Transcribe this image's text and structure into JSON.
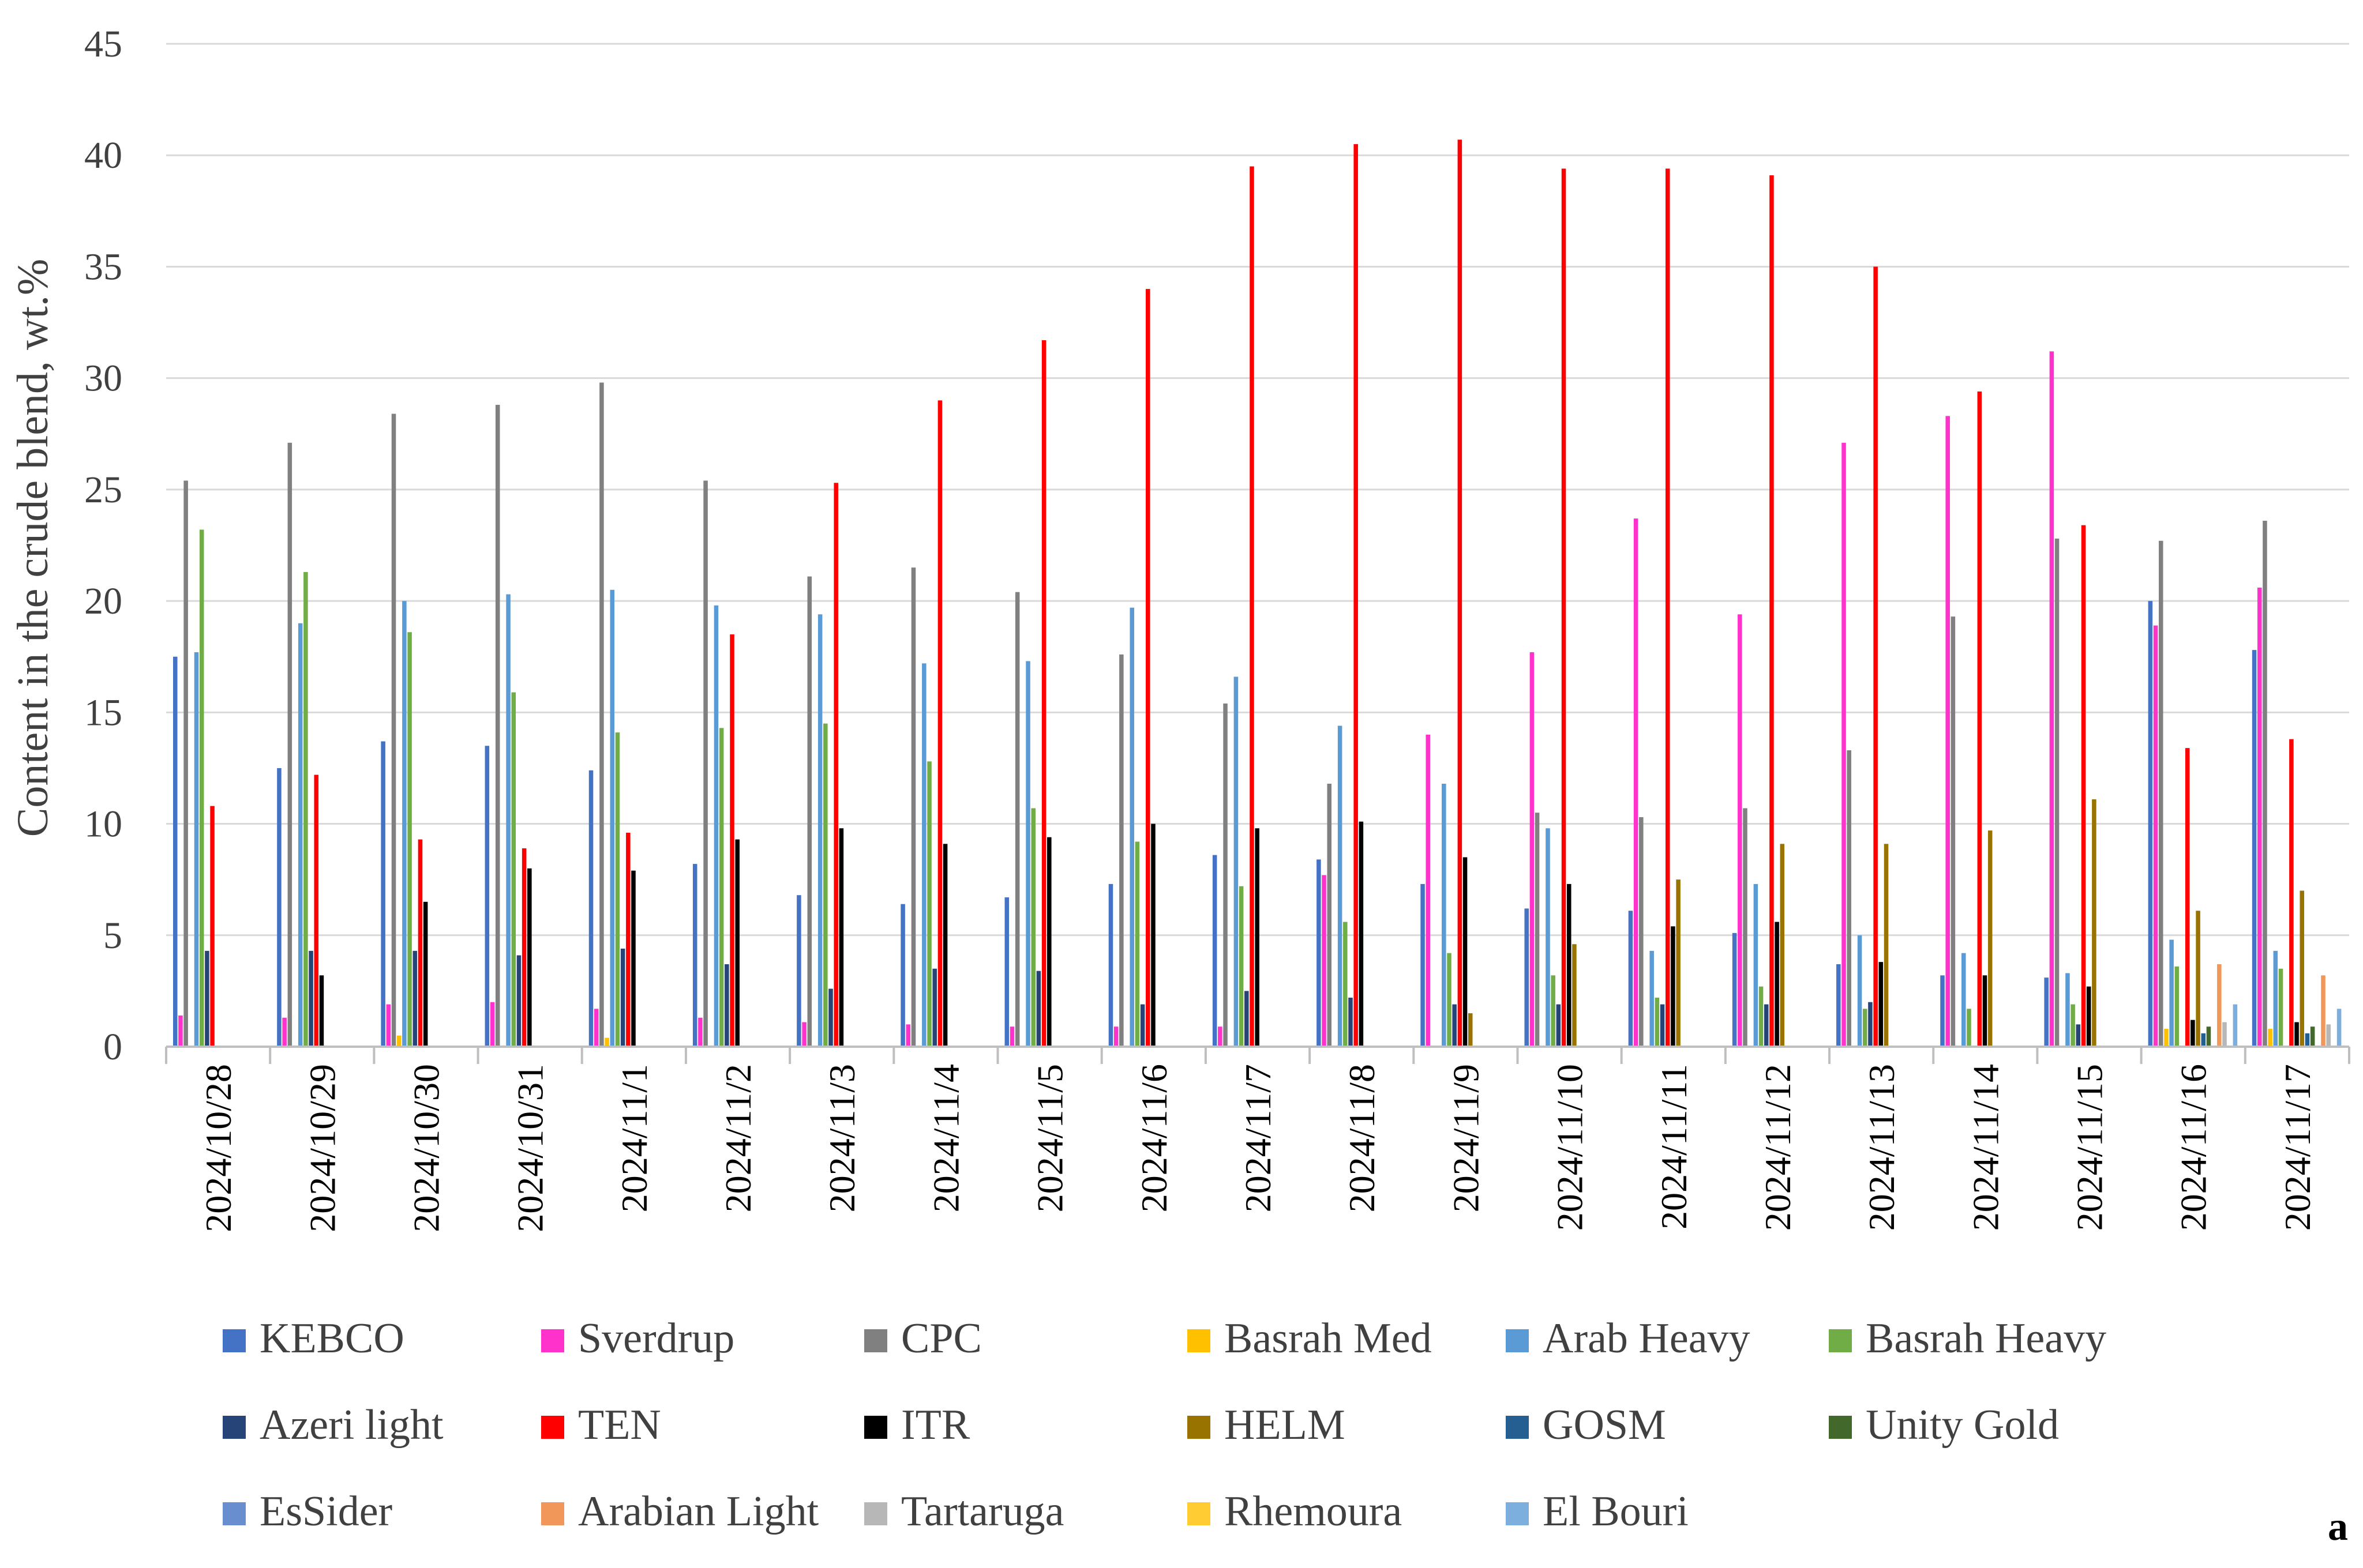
{
  "chart_data": {
    "type": "bar",
    "title": "",
    "xlabel": "",
    "ylabel": "Content in the crude blend, wt.%",
    "ylim": [
      0,
      45
    ],
    "yticks": [
      "0",
      "5",
      "10",
      "15",
      "20",
      "25",
      "30",
      "35",
      "40",
      "45"
    ],
    "grid": true,
    "legend_position": "bottom",
    "panel_label": "a",
    "categories": [
      "2024/10/28",
      "2024/10/29",
      "2024/10/30",
      "2024/10/31",
      "2024/11/1",
      "2024/11/2",
      "2024/11/3",
      "2024/11/4",
      "2024/11/5",
      "2024/11/6",
      "2024/11/7",
      "2024/11/8",
      "2024/11/9",
      "2024/11/10",
      "2024/11/11",
      "2024/11/12",
      "2024/11/13",
      "2024/11/14",
      "2024/11/15",
      "2024/11/16",
      "2024/11/17"
    ],
    "series": [
      {
        "name": "KEBCO",
        "color": "#4472C4",
        "values": [
          17.5,
          12.5,
          13.7,
          13.5,
          12.4,
          8.2,
          6.8,
          6.4,
          6.7,
          7.3,
          8.6,
          8.4,
          7.3,
          6.2,
          6.1,
          5.1,
          3.7,
          3.2,
          3.1,
          20.0,
          17.8
        ]
      },
      {
        "name": "Sverdrup",
        "color": "#FF33CC",
        "values": [
          1.4,
          1.3,
          1.9,
          2.0,
          1.7,
          1.3,
          1.1,
          1.0,
          0.9,
          0.9,
          0.9,
          7.7,
          14.0,
          17.7,
          23.7,
          19.4,
          27.1,
          28.3,
          31.2,
          18.9,
          20.6
        ]
      },
      {
        "name": "CPC",
        "color": "#808080",
        "values": [
          25.4,
          27.1,
          28.4,
          28.8,
          29.8,
          25.4,
          21.1,
          21.5,
          20.4,
          17.6,
          15.4,
          11.8,
          0,
          10.5,
          10.3,
          10.7,
          13.3,
          19.3,
          22.8,
          22.7,
          23.6
        ]
      },
      {
        "name": "Basrah Med",
        "color": "#FFC000",
        "values": [
          0,
          0,
          0.5,
          0,
          0.4,
          0,
          0,
          0,
          0,
          0,
          0,
          0,
          0,
          0,
          0,
          0,
          0,
          0,
          0,
          0.8,
          0.8
        ]
      },
      {
        "name": "Arab Heavy",
        "color": "#5B9BD5",
        "values": [
          17.7,
          19.0,
          20.0,
          20.3,
          20.5,
          19.8,
          19.4,
          17.2,
          17.3,
          19.7,
          16.6,
          14.4,
          11.8,
          9.8,
          4.3,
          7.3,
          5.0,
          4.2,
          3.3,
          4.8,
          4.3
        ]
      },
      {
        "name": "Basrah Heavy",
        "color": "#70AD47",
        "values": [
          23.2,
          21.3,
          18.6,
          15.9,
          14.1,
          14.3,
          14.5,
          12.8,
          10.7,
          9.2,
          7.2,
          5.6,
          4.2,
          3.2,
          2.2,
          2.7,
          1.7,
          1.7,
          1.9,
          3.6,
          3.5
        ]
      },
      {
        "name": "Azeri light",
        "color": "#264478",
        "values": [
          4.3,
          4.3,
          4.3,
          4.1,
          4.4,
          3.7,
          2.6,
          3.5,
          3.4,
          1.9,
          2.5,
          2.2,
          1.9,
          1.9,
          1.9,
          1.9,
          2.0,
          0,
          1.0,
          0,
          0
        ]
      },
      {
        "name": "TEN",
        "color": "#FF0000",
        "values": [
          10.8,
          12.2,
          9.3,
          8.9,
          9.6,
          18.5,
          25.3,
          29.0,
          31.7,
          34.0,
          39.5,
          40.5,
          40.7,
          39.4,
          39.4,
          39.1,
          35.0,
          29.4,
          23.4,
          13.4,
          13.8
        ]
      },
      {
        "name": "ITR",
        "color": "#000000",
        "values": [
          0,
          3.2,
          6.5,
          8.0,
          7.9,
          9.3,
          9.8,
          9.1,
          9.4,
          10.0,
          9.8,
          10.1,
          8.5,
          7.3,
          5.4,
          5.6,
          3.8,
          3.2,
          2.7,
          1.2,
          1.1
        ]
      },
      {
        "name": "HELM",
        "color": "#997300",
        "values": [
          0,
          0,
          0,
          0,
          0,
          0,
          0,
          0,
          0,
          0,
          0,
          0,
          1.5,
          4.6,
          7.5,
          9.1,
          9.1,
          9.7,
          11.1,
          6.1,
          7.0
        ]
      },
      {
        "name": "GOSM",
        "color": "#255E91",
        "values": [
          0,
          0,
          0,
          0,
          0,
          0,
          0,
          0,
          0,
          0,
          0,
          0,
          0,
          0,
          0,
          0,
          0,
          0,
          0,
          0.6,
          0.6
        ]
      },
      {
        "name": "Unity Gold",
        "color": "#43682B",
        "values": [
          0,
          0,
          0,
          0,
          0,
          0,
          0,
          0,
          0,
          0,
          0,
          0,
          0,
          0,
          0,
          0,
          0,
          0,
          0,
          0.9,
          0.9
        ]
      },
      {
        "name": "EsSider",
        "color": "#698ED0",
        "values": [
          0,
          0,
          0,
          0,
          0,
          0,
          0,
          0,
          0,
          0,
          0,
          0,
          0,
          0,
          0,
          0,
          0,
          0,
          0,
          0,
          0
        ]
      },
      {
        "name": "Arabian Light",
        "color": "#F1975A",
        "values": [
          0,
          0,
          0,
          0,
          0,
          0,
          0,
          0,
          0,
          0,
          0,
          0,
          0,
          0,
          0,
          0,
          0,
          0,
          0,
          3.7,
          3.2
        ]
      },
      {
        "name": "Tartaruga",
        "color": "#B7B7B7",
        "values": [
          0,
          0,
          0,
          0,
          0,
          0,
          0,
          0,
          0,
          0,
          0,
          0,
          0,
          0,
          0,
          0,
          0,
          0,
          0,
          1.1,
          1.0
        ]
      },
      {
        "name": "Rhemoura",
        "color": "#FFCD33",
        "values": [
          0,
          0,
          0,
          0,
          0,
          0,
          0,
          0,
          0,
          0,
          0,
          0,
          0,
          0,
          0,
          0,
          0,
          0,
          0,
          0,
          0
        ]
      },
      {
        "name": "El Bouri",
        "color": "#7CAFDD",
        "values": [
          0,
          0,
          0,
          0,
          0,
          0,
          0,
          0,
          0,
          0,
          0,
          0,
          0,
          0,
          0,
          0,
          0,
          0,
          0,
          1.9,
          1.7
        ]
      }
    ]
  }
}
